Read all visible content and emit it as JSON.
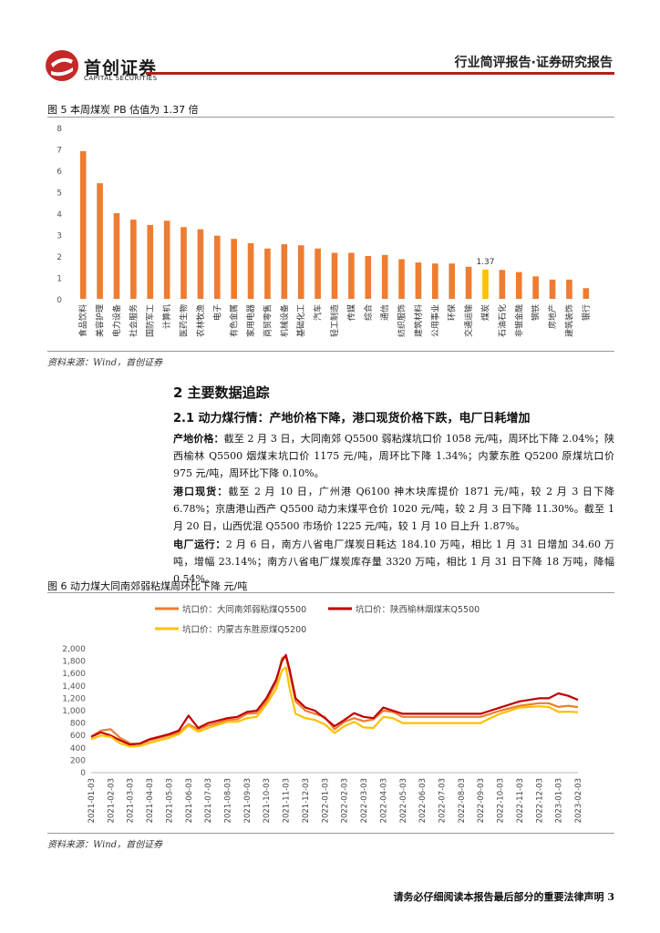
{
  "header": {
    "company_name": "首创证券",
    "company_name_en": "CAPITAL SECURITIES",
    "report_type": "行业简评报告·证券研究报告",
    "logo_color": "#c62828"
  },
  "figure5": {
    "title": "图 5 本周煤炭 PB 估值为 1.37 倍",
    "source": "资料来源：Wind，首创证券",
    "chart_data": {
      "type": "bar",
      "categories": [
        "食品饮料",
        "美容护理",
        "电力设备",
        "社会服务",
        "国防军工",
        "计算机",
        "医药生物",
        "农林牧渔",
        "电子",
        "有色金属",
        "家用电器",
        "商贸零售",
        "机械设备",
        "基础化工",
        "汽车",
        "轻工制造",
        "传媒",
        "综合",
        "通信",
        "纺织服饰",
        "建筑材料",
        "公用事业",
        "环保",
        "交通运输",
        "煤炭",
        "石油石化",
        "非银金融",
        "钢铁",
        "房地产",
        "建筑装饰",
        "银行"
      ],
      "values": [
        6.9,
        5.4,
        4.0,
        3.7,
        3.45,
        3.65,
        3.35,
        3.25,
        2.95,
        2.8,
        2.6,
        2.35,
        2.55,
        2.5,
        2.35,
        2.15,
        2.15,
        2.0,
        2.05,
        1.85,
        1.7,
        1.65,
        1.65,
        1.5,
        1.37,
        1.35,
        1.25,
        1.05,
        0.9,
        0.9,
        0.5
      ],
      "highlight_index": 24,
      "highlight_label": "1.37",
      "bar_color": "#ed7d31",
      "highlight_color": "#ffc000",
      "yticks": [
        "0",
        "1",
        "2",
        "3",
        "4",
        "5",
        "6",
        "7",
        "8"
      ],
      "ylim": [
        0,
        8
      ]
    }
  },
  "section": {
    "title": "2 主要数据追踪",
    "subtitle": "2.1 动力煤行情：产地价格下降，港口现货价格下跌，电厂日耗增加"
  },
  "paragraphs": [
    {
      "lead": "产地价格：",
      "text": "截至 2 月 3 日，大同南郊 Q5500 弱粘煤坑口价 1058 元/吨，周环比下降 2.04%；陕西榆林 Q5500 烟煤末坑口价 1175 元/吨，周环比下降 1.34%；内蒙东胜 Q5200 原煤坑口价 975 元/吨，周环比下降 0.10%。"
    },
    {
      "lead": "港口现货：",
      "text": "截至 2 月 10 日，广州港 Q6100 神木块库提价 1871 元/吨，较 2 月 3 日下降 6.78%；京唐港山西产 Q5500 动力末煤平仓价 1020 元/吨，较 2 月 3 日下降 11.30%。截至 1 月 20 日，山西优混 Q5500 市场价 1225 元/吨，较 1 月 10 日上升 1.87%。"
    },
    {
      "lead": "电厂运行：",
      "text": "2 月 6 日，南方八省电厂煤炭日耗达 184.10 万吨，相比 1 月 31 日增加 34.60 万吨，增幅 23.14%；南方八省电厂煤炭库存量 3320 万吨，相比 1 月 31 日下降 18 万吨，降幅 0.54%。"
    }
  ],
  "figure6": {
    "title": "图 6 动力煤大同南郊弱粘煤周环比下降 元/吨",
    "source": "资料来源：Wind，首创证券",
    "chart_data": {
      "type": "line",
      "yticks": [
        "0",
        "200",
        "400",
        "600",
        "800",
        "1,000",
        "1,200",
        "1,400",
        "1,600",
        "1,800",
        "2,000"
      ],
      "ylim": [
        0,
        2000
      ],
      "x_labels": [
        "2021-01-03",
        "2021-02-03",
        "2021-03-03",
        "2021-04-03",
        "2021-05-03",
        "2021-06-03",
        "2021-07-03",
        "2021-08-03",
        "2021-09-03",
        "2021-10-03",
        "2021-11-03",
        "2021-12-03",
        "2022-01-03",
        "2022-02-03",
        "2022-03-03",
        "2022-04-03",
        "2022-05-03",
        "2022-06-03",
        "2022-07-03",
        "2022-08-03",
        "2022-09-03",
        "2022-10-03",
        "2022-11-03",
        "2022-12-03",
        "2023-01-03",
        "2023-02-03"
      ],
      "series": [
        {
          "name": "坑口价：大同南郊弱粘煤Q5500",
          "color": "#ed7d31",
          "values": [
            [
              0,
              580
            ],
            [
              0.5,
              680
            ],
            [
              1,
              700
            ],
            [
              1.5,
              560
            ],
            [
              2,
              470
            ],
            [
              2.5,
              460
            ],
            [
              3,
              520
            ],
            [
              3.5,
              560
            ],
            [
              4,
              600
            ],
            [
              4.5,
              650
            ],
            [
              5,
              780
            ],
            [
              5.5,
              700
            ],
            [
              6,
              760
            ],
            [
              6.5,
              800
            ],
            [
              7,
              850
            ],
            [
              7.5,
              860
            ],
            [
              8,
              950
            ],
            [
              8.5,
              960
            ],
            [
              9,
              1150
            ],
            [
              9.5,
              1450
            ],
            [
              9.8,
              1850
            ],
            [
              10,
              1880
            ],
            [
              10.2,
              1600
            ],
            [
              10.5,
              1150
            ],
            [
              11,
              1000
            ],
            [
              11.5,
              950
            ],
            [
              12,
              900
            ],
            [
              12.5,
              700
            ],
            [
              13,
              820
            ],
            [
              13.5,
              880
            ],
            [
              14,
              830
            ],
            [
              14.5,
              860
            ],
            [
              15,
              1000
            ],
            [
              15.5,
              980
            ],
            [
              16,
              900
            ],
            [
              17,
              900
            ],
            [
              18,
              900
            ],
            [
              19,
              900
            ],
            [
              20,
              900
            ],
            [
              20.5,
              950
            ],
            [
              21,
              1000
            ],
            [
              22,
              1080
            ],
            [
              23,
              1120
            ],
            [
              23.5,
              1120
            ],
            [
              24,
              1060
            ],
            [
              24.5,
              1080
            ],
            [
              25,
              1058
            ]
          ]
        },
        {
          "name": "坑口价：陕西榆林烟煤末Q5500",
          "color": "#c00000",
          "values": [
            [
              0,
              580
            ],
            [
              0.5,
              650
            ],
            [
              1,
              600
            ],
            [
              1.5,
              520
            ],
            [
              2,
              450
            ],
            [
              2.5,
              470
            ],
            [
              3,
              540
            ],
            [
              3.5,
              580
            ],
            [
              4,
              620
            ],
            [
              4.5,
              680
            ],
            [
              5,
              920
            ],
            [
              5.5,
              720
            ],
            [
              6,
              800
            ],
            [
              6.5,
              840
            ],
            [
              7,
              880
            ],
            [
              7.5,
              900
            ],
            [
              8,
              980
            ],
            [
              8.5,
              1000
            ],
            [
              9,
              1200
            ],
            [
              9.5,
              1500
            ],
            [
              9.8,
              1800
            ],
            [
              10,
              1900
            ],
            [
              10.2,
              1650
            ],
            [
              10.5,
              1200
            ],
            [
              11,
              1050
            ],
            [
              11.5,
              1000
            ],
            [
              12,
              880
            ],
            [
              12.5,
              750
            ],
            [
              13,
              850
            ],
            [
              13.5,
              960
            ],
            [
              14,
              900
            ],
            [
              14.5,
              880
            ],
            [
              15,
              1050
            ],
            [
              15.5,
              1000
            ],
            [
              16,
              950
            ],
            [
              17,
              950
            ],
            [
              18,
              950
            ],
            [
              19,
              950
            ],
            [
              20,
              950
            ],
            [
              20.5,
              1000
            ],
            [
              21,
              1050
            ],
            [
              22,
              1150
            ],
            [
              23,
              1200
            ],
            [
              23.5,
              1200
            ],
            [
              24,
              1280
            ],
            [
              24.5,
              1240
            ],
            [
              25,
              1175
            ]
          ]
        },
        {
          "name": "坑口价：内蒙古东胜原煤Q5200",
          "color": "#ffc000",
          "values": [
            [
              0,
              540
            ],
            [
              0.5,
              600
            ],
            [
              1,
              580
            ],
            [
              1.5,
              470
            ],
            [
              2,
              420
            ],
            [
              2.5,
              430
            ],
            [
              3,
              480
            ],
            [
              3.5,
              520
            ],
            [
              4,
              560
            ],
            [
              4.5,
              620
            ],
            [
              5,
              760
            ],
            [
              5.5,
              660
            ],
            [
              6,
              720
            ],
            [
              6.5,
              770
            ],
            [
              7,
              820
            ],
            [
              7.5,
              820
            ],
            [
              8,
              880
            ],
            [
              8.5,
              900
            ],
            [
              9,
              1100
            ],
            [
              9.5,
              1350
            ],
            [
              9.8,
              1650
            ],
            [
              10,
              1700
            ],
            [
              10.2,
              1350
            ],
            [
              10.5,
              950
            ],
            [
              11,
              880
            ],
            [
              11.5,
              850
            ],
            [
              12,
              780
            ],
            [
              12.5,
              640
            ],
            [
              13,
              750
            ],
            [
              13.5,
              820
            ],
            [
              14,
              730
            ],
            [
              14.5,
              720
            ],
            [
              15,
              900
            ],
            [
              15.5,
              880
            ],
            [
              16,
              800
            ],
            [
              17,
              800
            ],
            [
              18,
              800
            ],
            [
              19,
              800
            ],
            [
              20,
              800
            ],
            [
              20.5,
              880
            ],
            [
              21,
              950
            ],
            [
              22,
              1050
            ],
            [
              23,
              1070
            ],
            [
              23.5,
              1060
            ],
            [
              24,
              980
            ],
            [
              24.5,
              985
            ],
            [
              25,
              975
            ]
          ]
        }
      ]
    }
  },
  "footer": {
    "note": "请务必仔细阅读本报告最后部分的重要法律声明 3"
  }
}
